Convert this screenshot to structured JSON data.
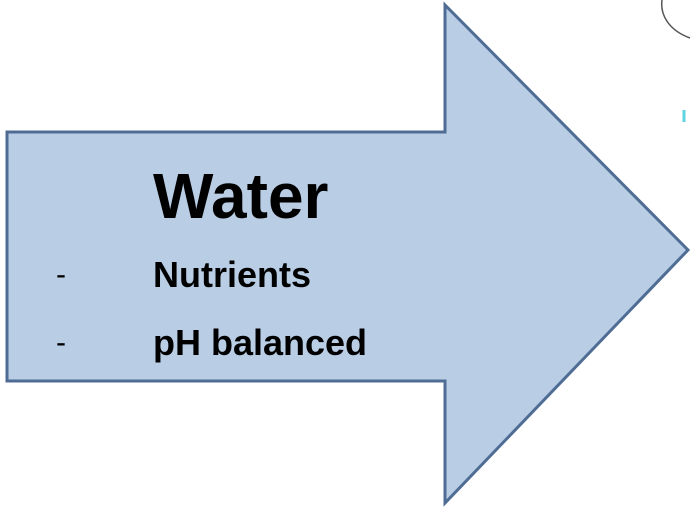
{
  "arrow": {
    "title": "Water",
    "items": [
      {
        "marker": "-",
        "text": "Nutrients"
      },
      {
        "marker": "-",
        "text": "pH balanced"
      }
    ]
  }
}
